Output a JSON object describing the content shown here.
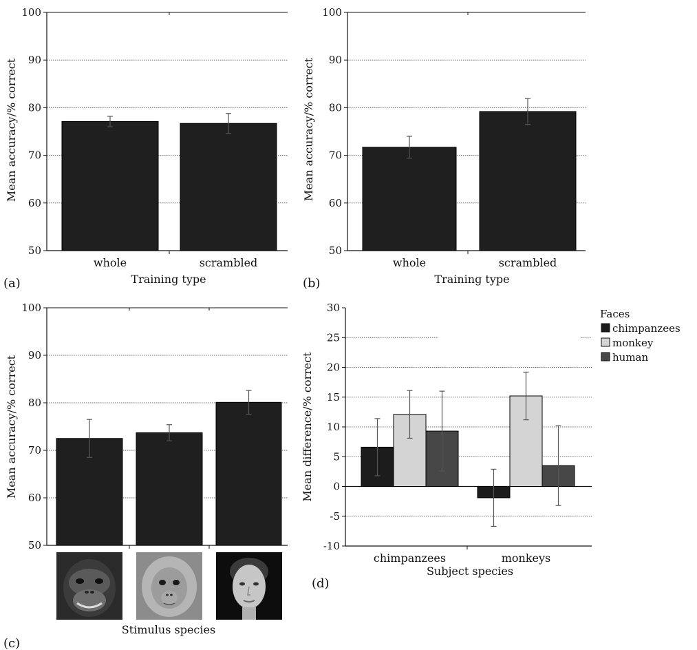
{
  "chart_data": [
    {
      "panel": "(a)",
      "type": "bar",
      "categories": [
        "whole",
        "scrambled"
      ],
      "values": [
        77.1,
        76.7
      ],
      "errors": [
        1.1,
        2.1
      ],
      "xlabel": "Training type",
      "ylabel": "Mean accuracy/% correct",
      "ylim": [
        50,
        100
      ],
      "yticks": [
        50,
        60,
        70,
        80,
        90,
        100
      ],
      "grid": true,
      "bar_color": "#1f1f1f"
    },
    {
      "panel": "(b)",
      "type": "bar",
      "categories": [
        "whole",
        "scrambled"
      ],
      "values": [
        71.7,
        79.2
      ],
      "errors": [
        2.3,
        2.7
      ],
      "xlabel": "Training type",
      "ylabel": "Mean accuracy/% correct",
      "ylim": [
        50,
        100
      ],
      "yticks": [
        50,
        60,
        70,
        80,
        90,
        100
      ],
      "grid": true,
      "bar_color": "#1f1f1f"
    },
    {
      "panel": "(c)",
      "type": "bar",
      "categories": [
        "chimpanzee face",
        "monkey face",
        "human face"
      ],
      "values": [
        72.5,
        73.7,
        80.1
      ],
      "errors": [
        4.0,
        1.7,
        2.5
      ],
      "xlabel": "Stimulus species",
      "ylabel": "Mean accuracy/% correct",
      "ylim": [
        50,
        100
      ],
      "yticks": [
        50,
        60,
        70,
        80,
        90,
        100
      ],
      "grid": true,
      "bar_color": "#1f1f1f"
    },
    {
      "panel": "(d)",
      "type": "bar",
      "categories": [
        "chimpanzees",
        "monkeys"
      ],
      "series": [
        {
          "name": "chimpanzees",
          "values": [
            6.6,
            -1.9
          ],
          "errors": [
            4.8,
            4.8
          ],
          "color": "#1c1c1c"
        },
        {
          "name": "monkey",
          "values": [
            12.1,
            15.2
          ],
          "errors": [
            4.0,
            4.0
          ],
          "color": "#d4d4d4"
        },
        {
          "name": "human",
          "values": [
            9.3,
            3.5
          ],
          "errors": [
            6.7,
            6.7
          ],
          "color": "#474747"
        }
      ],
      "xlabel": "Subject species",
      "ylabel": "Mean difference/% correct",
      "ylim": [
        -10,
        30
      ],
      "yticks": [
        -10,
        -5,
        0,
        5,
        10,
        15,
        20,
        25,
        30
      ],
      "grid": true,
      "legend_title": "Faces",
      "legend_position": "outside-right"
    }
  ],
  "panel_letters": [
    "(a)",
    "(b)",
    "(c)",
    "(d)"
  ],
  "icons": [
    "chimpanzee-face-photo",
    "monkey-face-photo",
    "human-face-photo"
  ]
}
